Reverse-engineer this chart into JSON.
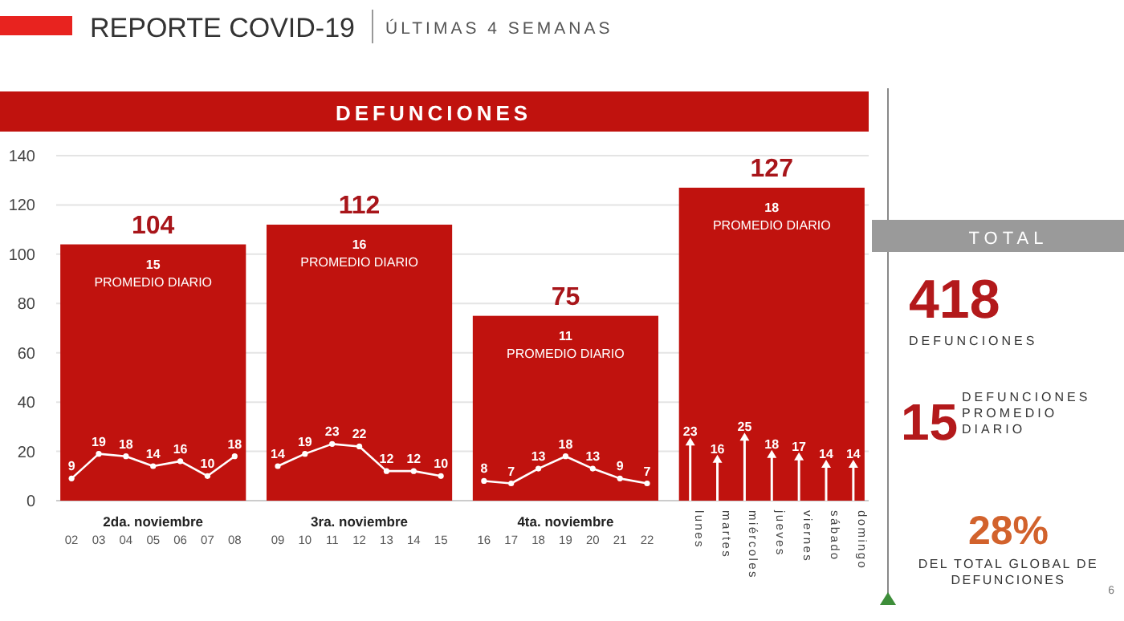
{
  "chart_data": [
    {
      "type": "bar",
      "title": "DEFUNCIONES",
      "categories": [
        "2da. noviembre",
        "3ra. noviembre",
        "4ta. noviembre",
        null
      ],
      "values": [
        104,
        112,
        75,
        127
      ],
      "color": "#c0120e",
      "data_labels": true,
      "ylim": [
        0,
        140
      ],
      "yticks": [
        0,
        20,
        40,
        60,
        80,
        100,
        120,
        140
      ],
      "grid": "y",
      "annotations": [
        "15\nPROMEDIO DIARIO",
        "16\nPROMEDIO DIARIO",
        "11\nPROMEDIO DIARIO",
        "18\nPROMEDIO DIARIO",
        "REPORTE COVID-19",
        "ÚLTIMAS 4 SEMANAS"
      ]
    },
    {
      "type": "line",
      "categories": [
        "02",
        "03",
        "04",
        "05",
        "06",
        "07",
        "08"
      ],
      "values": [
        9,
        19,
        18,
        14,
        16,
        10,
        18
      ],
      "color": "#ffffff",
      "marker": "circle",
      "data_labels": true,
      "ylim": [
        0,
        140
      ],
      "tick_labels": "x"
    },
    {
      "type": "line",
      "categories": [
        "09",
        "10",
        "11",
        "12",
        "13",
        "14",
        "15"
      ],
      "values": [
        14,
        19,
        23,
        22,
        12,
        12,
        10
      ],
      "color": "#ffffff",
      "marker": "circle",
      "data_labels": true,
      "ylim": [
        0,
        140
      ],
      "tick_labels": "x"
    },
    {
      "type": "line",
      "categories": [
        "16",
        "17",
        "18",
        "19",
        "20",
        "21",
        "22"
      ],
      "values": [
        8,
        7,
        13,
        18,
        13,
        9,
        7
      ],
      "color": "#ffffff",
      "marker": "circle",
      "data_labels": true,
      "ylim": [
        0,
        140
      ],
      "tick_labels": "x"
    },
    {
      "type": "lollipop",
      "categories": [
        "lunes",
        "martes",
        "miércoles",
        "jueves",
        "viernes",
        "sábado",
        "domingo"
      ],
      "values": [
        23,
        16,
        25,
        18,
        17,
        14,
        14
      ],
      "color": "#ffffff",
      "marker": "triangle",
      "data_labels": true,
      "ylim": [
        0,
        140
      ],
      "tick_labels": "x"
    },
    {
      "type": "other",
      "title": "TOTAL",
      "annotations": [
        "418",
        "DEFUNCIONES",
        "15",
        "DEFUNCIONES\nPROMEDIO\nDIARIO",
        "28%",
        "DEL TOTAL GLOBAL DE\nDEFUNCIONES",
        "6"
      ]
    }
  ]
}
